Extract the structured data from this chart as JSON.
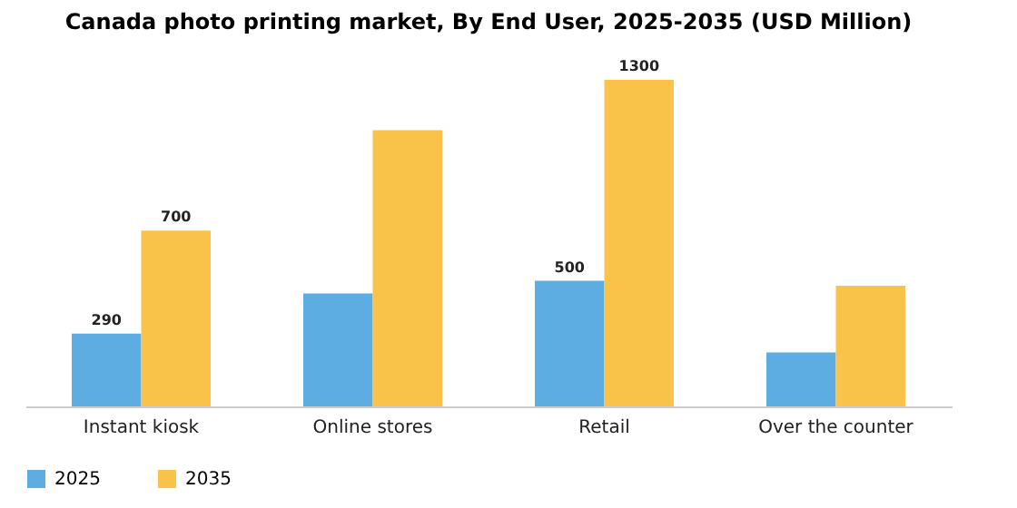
{
  "chart_data": {
    "type": "bar",
    "title": "Canada photo printing market, By End User, 2025-2035 (USD Million)",
    "categories": [
      "Instant kiosk",
      "Online stores",
      "Retail",
      "Over the counter"
    ],
    "series": [
      {
        "name": "2025",
        "color": "#5dade2",
        "values": [
          290,
          450,
          500,
          215
        ],
        "value_labels": [
          "290",
          null,
          "500",
          null
        ]
      },
      {
        "name": "2035",
        "color": "#f9c34a",
        "values": [
          700,
          1100,
          1300,
          480
        ],
        "value_labels": [
          "700",
          null,
          "1300",
          null
        ]
      }
    ],
    "legend": "bottom",
    "grid": false
  }
}
